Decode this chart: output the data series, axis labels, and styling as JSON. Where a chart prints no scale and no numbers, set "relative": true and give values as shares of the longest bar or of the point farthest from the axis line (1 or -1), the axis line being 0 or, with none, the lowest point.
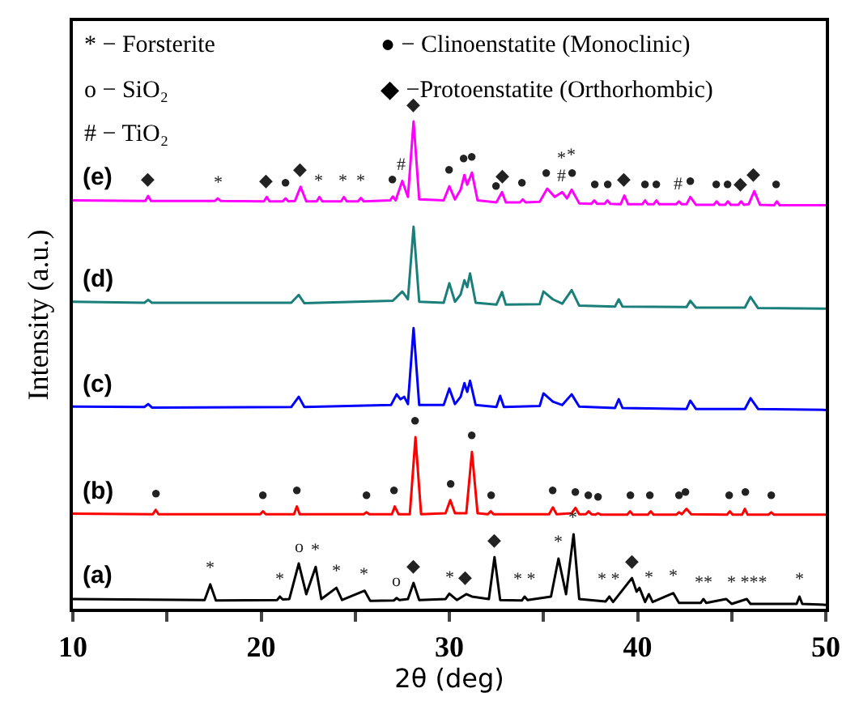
{
  "chart_data": {
    "type": "line",
    "relative": true,
    "xlabel": "2θ (deg)",
    "ylabel": "Intensity (a.u.)",
    "xlim": [
      10,
      50
    ],
    "xticks": [
      10,
      {
        "value": 15,
        "label": null
      },
      20,
      {
        "value": 25,
        "label": null
      },
      30,
      {
        "value": 35,
        "label": null
      },
      40,
      {
        "value": 45,
        "label": null
      },
      50
    ],
    "grid": false,
    "legend": false,
    "marker": "none",
    "line_style": "solid",
    "series": [
      {
        "name": "(a)",
        "color": "#000000",
        "x": [
          10,
          17.0,
          17.3,
          17.6,
          20.85,
          21.0,
          21.15,
          21.5,
          22.0,
          22.4,
          22.9,
          23.2,
          24.0,
          24.3,
          25.5,
          25.8,
          27.05,
          27.2,
          27.35,
          27.8,
          28.1,
          28.4,
          29.8,
          30.0,
          30.4,
          30.9,
          31.2,
          32.1,
          32.4,
          32.7,
          33.85,
          34.0,
          34.15,
          35.4,
          35.8,
          36.2,
          36.6,
          36.9,
          38.3,
          38.5,
          38.7,
          39.7,
          39.95,
          40.1,
          40.4,
          40.6,
          40.8,
          41.9,
          42.2,
          43.35,
          43.5,
          43.65,
          44.7,
          45,
          45.8,
          46.0,
          48.45,
          48.6,
          48.75,
          50
        ],
        "values": [
          0.02,
          0.018,
          0.05,
          0.017,
          0.018,
          0.025,
          0.019,
          0.02,
          0.093,
          0.03,
          0.086,
          0.02,
          0.043,
          0.018,
          0.037,
          0.016,
          0.017,
          0.022,
          0.018,
          0.02,
          0.053,
          0.018,
          0.02,
          0.031,
          0.018,
          0.03,
          0.025,
          0.02,
          0.106,
          0.018,
          0.017,
          0.025,
          0.018,
          0.025,
          0.103,
          0.03,
          0.153,
          0.02,
          0.015,
          0.025,
          0.014,
          0.063,
          0.035,
          0.043,
          0.014,
          0.03,
          0.014,
          0.032,
          0.012,
          0.012,
          0.02,
          0.012,
          0.02,
          0.01,
          0.02,
          0.01,
          0.01,
          0.025,
          0.01,
          0.008
        ]
      },
      {
        "name": "(b)",
        "color": "#ff0000",
        "x": [
          10,
          14.25,
          14.4,
          14.55,
          19.95,
          20.1,
          20.25,
          21.75,
          21.9,
          22.05,
          25.45,
          25.6,
          25.75,
          26.95,
          27.1,
          27.3,
          27.9,
          28.2,
          28.5,
          29.8,
          30.05,
          30.3,
          30.9,
          31.2,
          31.5,
          32.05,
          32.2,
          32.35,
          35.3,
          35.5,
          35.7,
          36.5,
          36.7,
          36.9,
          37.25,
          37.4,
          37.55,
          37.75,
          37.9,
          38.05,
          39.45,
          39.6,
          39.75,
          40.55,
          40.7,
          40.85,
          42.05,
          42.2,
          42.35,
          42.6,
          42.85,
          44.75,
          44.9,
          45.05,
          45.55,
          45.7,
          45.85,
          46.95,
          47.1,
          47.25,
          50
        ],
        "values": [
          0.195,
          0.194,
          0.203,
          0.194,
          0.194,
          0.2,
          0.194,
          0.194,
          0.21,
          0.194,
          0.194,
          0.198,
          0.194,
          0.194,
          0.21,
          0.194,
          0.194,
          0.352,
          0.194,
          0.196,
          0.223,
          0.196,
          0.196,
          0.322,
          0.196,
          0.194,
          0.2,
          0.194,
          0.194,
          0.208,
          0.194,
          0.196,
          0.207,
          0.194,
          0.194,
          0.2,
          0.194,
          0.193,
          0.196,
          0.193,
          0.193,
          0.2,
          0.193,
          0.193,
          0.2,
          0.193,
          0.193,
          0.198,
          0.194,
          0.205,
          0.194,
          0.193,
          0.2,
          0.193,
          0.193,
          0.205,
          0.193,
          0.193,
          0.198,
          0.193,
          0.193
        ]
      },
      {
        "name": "(c)",
        "color": "#0000ff",
        "x": [
          10,
          13.8,
          14.0,
          14.2,
          21.6,
          22.0,
          22.3,
          26.9,
          27.2,
          27.4,
          27.6,
          27.8,
          28.1,
          28.4,
          29.7,
          30.0,
          30.3,
          30.6,
          30.8,
          30.95,
          31.1,
          31.4,
          32.5,
          32.7,
          32.9,
          34.8,
          35.0,
          35.5,
          36.0,
          36.5,
          36.9,
          38.8,
          39.0,
          39.2,
          42.6,
          42.8,
          43.1,
          45.7,
          46.0,
          46.4,
          50
        ],
        "values": [
          0.415,
          0.414,
          0.42,
          0.413,
          0.414,
          0.435,
          0.414,
          0.418,
          0.44,
          0.43,
          0.435,
          0.42,
          0.576,
          0.418,
          0.418,
          0.452,
          0.42,
          0.435,
          0.463,
          0.445,
          0.468,
          0.418,
          0.414,
          0.437,
          0.414,
          0.416,
          0.442,
          0.425,
          0.418,
          0.44,
          0.415,
          0.412,
          0.43,
          0.412,
          0.41,
          0.427,
          0.41,
          0.41,
          0.432,
          0.41,
          0.408
        ]
      },
      {
        "name": "(d)",
        "color": "#1a7f7a",
        "x": [
          10,
          13.8,
          14.0,
          14.2,
          21.6,
          22.0,
          22.3,
          27.0,
          27.5,
          27.8,
          28.1,
          28.4,
          29.7,
          30.0,
          30.3,
          30.6,
          30.8,
          30.95,
          31.1,
          31.4,
          32.5,
          32.8,
          33.0,
          34.8,
          35.0,
          35.5,
          36.0,
          36.5,
          36.9,
          38.8,
          39.0,
          39.2,
          42.6,
          42.8,
          43.1,
          45.7,
          46.0,
          46.4,
          50
        ],
        "values": [
          0.63,
          0.628,
          0.634,
          0.628,
          0.628,
          0.644,
          0.627,
          0.632,
          0.651,
          0.635,
          0.784,
          0.63,
          0.628,
          0.668,
          0.63,
          0.645,
          0.674,
          0.66,
          0.688,
          0.628,
          0.624,
          0.65,
          0.624,
          0.625,
          0.651,
          0.635,
          0.626,
          0.654,
          0.622,
          0.62,
          0.635,
          0.62,
          0.619,
          0.632,
          0.618,
          0.618,
          0.64,
          0.617,
          0.616
        ]
      },
      {
        "name": "(e)",
        "color": "#ff00ff",
        "x": [
          10,
          13.85,
          14.0,
          14.15,
          17.55,
          17.7,
          17.85,
          20.15,
          20.3,
          20.45,
          21.15,
          21.3,
          21.45,
          21.8,
          22.1,
          22.4,
          22.95,
          23.1,
          23.25,
          24.25,
          24.4,
          24.55,
          25.15,
          25.3,
          25.45,
          26.85,
          27.0,
          27.15,
          27.5,
          27.8,
          28.1,
          28.4,
          29.7,
          30.0,
          30.3,
          30.6,
          30.8,
          30.95,
          31.2,
          31.5,
          32.5,
          32.8,
          33.0,
          33.75,
          33.9,
          34.05,
          34.8,
          35.2,
          35.6,
          36.0,
          36.25,
          36.5,
          36.9,
          37.55,
          37.7,
          37.85,
          38.25,
          38.4,
          38.55,
          39.1,
          39.3,
          39.5,
          40.25,
          40.4,
          40.55,
          40.85,
          41.0,
          41.15,
          42.05,
          42.2,
          42.35,
          42.6,
          42.8,
          43.1,
          44.05,
          44.2,
          44.35,
          44.65,
          44.8,
          44.95,
          45.35,
          45.5,
          45.65,
          45.9,
          46.2,
          46.5,
          47.25,
          47.4,
          47.55,
          50
        ],
        "values": [
          0.838,
          0.837,
          0.847,
          0.837,
          0.837,
          0.842,
          0.837,
          0.836,
          0.845,
          0.836,
          0.836,
          0.842,
          0.836,
          0.837,
          0.866,
          0.836,
          0.836,
          0.845,
          0.836,
          0.836,
          0.845,
          0.836,
          0.836,
          0.843,
          0.836,
          0.838,
          0.846,
          0.838,
          0.878,
          0.845,
          1,
          0.84,
          0.838,
          0.867,
          0.84,
          0.86,
          0.89,
          0.87,
          0.895,
          0.838,
          0.834,
          0.855,
          0.834,
          0.834,
          0.84,
          0.834,
          0.835,
          0.862,
          0.845,
          0.855,
          0.842,
          0.86,
          0.832,
          0.831,
          0.838,
          0.831,
          0.831,
          0.838,
          0.831,
          0.83,
          0.848,
          0.83,
          0.83,
          0.838,
          0.83,
          0.83,
          0.838,
          0.83,
          0.83,
          0.836,
          0.83,
          0.83,
          0.845,
          0.829,
          0.829,
          0.836,
          0.829,
          0.829,
          0.836,
          0.829,
          0.829,
          0.836,
          0.829,
          0.83,
          0.857,
          0.829,
          0.828,
          0.836,
          0.828,
          0.828
        ]
      }
    ],
    "annotations": [
      "* − Forsterite",
      "o − SiO₂",
      "# − TiO₂",
      "● − Clinoenstatite (Monoclinic)",
      "◆ −Protoenstatite (Orthorhombic)",
      {
        "text": "◆",
        "x": 14.0,
        "y": 0.847
      },
      {
        "text": "*",
        "x": 17.7,
        "y": 0.842
      },
      {
        "text": "◆",
        "x": 20.3,
        "y": 0.845
      },
      {
        "text": "●",
        "x": 21.3,
        "y": 0.842
      },
      {
        "text": "◆",
        "x": 22.1,
        "y": 0.866
      },
      {
        "text": "*",
        "x": 23.1,
        "y": 0.845
      },
      {
        "text": "*",
        "x": 24.4,
        "y": 0.845
      },
      {
        "text": "*",
        "x": 25.3,
        "y": 0.843
      },
      {
        "text": "●",
        "x": 27.0,
        "y": 0.846
      },
      {
        "text": "#",
        "x": 27.5,
        "y": 0.878
      },
      {
        "text": "◆",
        "x": 28.1,
        "y": 1
      },
      {
        "text": "●",
        "x": 30.0,
        "y": 0.867
      },
      {
        "text": "●",
        "x": 30.8,
        "y": 0.89
      },
      {
        "text": "●",
        "x": 31.2,
        "y": 0.895
      },
      {
        "text": "●",
        "x": 32.5,
        "y": 0.834
      },
      {
        "text": "◆",
        "x": 32.8,
        "y": 0.855
      },
      {
        "text": "●",
        "x": 33.9,
        "y": 0.84
      },
      {
        "text": "●",
        "x": 35.2,
        "y": 0.862
      },
      {
        "text": "#",
        "x": 36.0,
        "y": 0.855
      },
      {
        "text": "*",
        "x": 36.0,
        "y": 0.855
      },
      {
        "text": "●",
        "x": 36.5,
        "y": 0.86
      },
      {
        "text": "*",
        "x": 36.5,
        "y": 0.86
      },
      {
        "text": "●",
        "x": 37.7,
        "y": 0.838
      },
      {
        "text": "●",
        "x": 38.4,
        "y": 0.838
      },
      {
        "text": "◆",
        "x": 39.3,
        "y": 0.848
      },
      {
        "text": "●",
        "x": 40.4,
        "y": 0.838
      },
      {
        "text": "●",
        "x": 41.0,
        "y": 0.838
      },
      {
        "text": "#",
        "x": 42.2,
        "y": 0.836
      },
      {
        "text": "●",
        "x": 42.8,
        "y": 0.845
      },
      {
        "text": "●",
        "x": 44.2,
        "y": 0.836
      },
      {
        "text": "●",
        "x": 44.8,
        "y": 0.836
      },
      {
        "text": "◆",
        "x": 45.5,
        "y": 0.836
      },
      {
        "text": "◆",
        "x": 46.2,
        "y": 0.857
      },
      {
        "text": "●",
        "x": 47.4,
        "y": 0.836
      },
      {
        "text": "●",
        "x": 14.4,
        "y": 0.203
      },
      {
        "text": "●",
        "x": 20.1,
        "y": 0.2
      },
      {
        "text": "●",
        "x": 21.9,
        "y": 0.21
      },
      {
        "text": "●",
        "x": 25.6,
        "y": 0.198
      },
      {
        "text": "●",
        "x": 27.1,
        "y": 0.21
      },
      {
        "text": "●",
        "x": 28.2,
        "y": 0.352
      },
      {
        "text": "●",
        "x": 30.05,
        "y": 0.223
      },
      {
        "text": "●",
        "x": 31.2,
        "y": 0.322
      },
      {
        "text": "●",
        "x": 32.2,
        "y": 0.2
      },
      {
        "text": "●",
        "x": 35.5,
        "y": 0.208
      },
      {
        "text": "●",
        "x": 36.7,
        "y": 0.207
      },
      {
        "text": "●",
        "x": 37.4,
        "y": 0.2
      },
      {
        "text": "●",
        "x": 37.9,
        "y": 0.196
      },
      {
        "text": "●",
        "x": 39.6,
        "y": 0.2
      },
      {
        "text": "●",
        "x": 40.7,
        "y": 0.2
      },
      {
        "text": "●",
        "x": 42.2,
        "y": 0.198
      },
      {
        "text": "●",
        "x": 42.6,
        "y": 0.205
      },
      {
        "text": "●",
        "x": 44.9,
        "y": 0.2
      },
      {
        "text": "●",
        "x": 45.7,
        "y": 0.205
      },
      {
        "text": "●",
        "x": 47.1,
        "y": 0.198
      },
      {
        "text": "*",
        "x": 17.3,
        "y": 0.05
      },
      {
        "text": "*",
        "x": 21.0,
        "y": 0.025
      },
      {
        "text": "o",
        "x": 22.0,
        "y": 0.093
      },
      {
        "text": "*",
        "x": 22.9,
        "y": 0.086
      },
      {
        "text": "*",
        "x": 24.0,
        "y": 0.043
      },
      {
        "text": "*",
        "x": 25.5,
        "y": 0.037
      },
      {
        "text": "o",
        "x": 27.2,
        "y": 0.022
      },
      {
        "text": "◆",
        "x": 28.1,
        "y": 0.053
      },
      {
        "text": "*",
        "x": 30.0,
        "y": 0.031
      },
      {
        "text": "◆",
        "x": 30.9,
        "y": 0.03
      },
      {
        "text": "◆",
        "x": 32.4,
        "y": 0.106
      },
      {
        "text": "* *",
        "x": 34.0,
        "y": 0.025
      },
      {
        "text": "*",
        "x": 35.8,
        "y": 0.103
      },
      {
        "text": "*",
        "x": 36.6,
        "y": 0.153
      },
      {
        "text": "* *",
        "x": 38.5,
        "y": 0.025
      },
      {
        "text": "◆",
        "x": 39.7,
        "y": 0.063
      },
      {
        "text": "*",
        "x": 40.6,
        "y": 0.03
      },
      {
        "text": "*",
        "x": 41.9,
        "y": 0.032
      },
      {
        "text": "**",
        "x": 43.5,
        "y": 0.02
      },
      {
        "text": "* ***",
        "x": 45.8,
        "y": 0.02
      },
      {
        "text": "*",
        "x": 48.6,
        "y": 0.025
      }
    ]
  }
}
